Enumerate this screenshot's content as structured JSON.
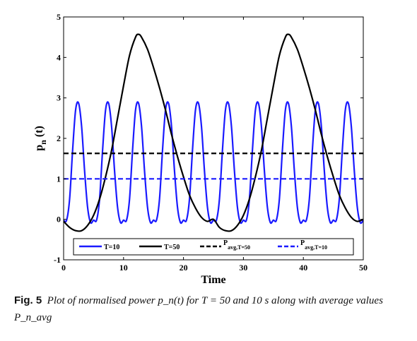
{
  "chart_data": {
    "type": "line",
    "xlabel": "Time",
    "ylabel_main": "p",
    "ylabel_sub": "n",
    "ylabel_suffix": " (t)",
    "xlim": [
      0,
      50
    ],
    "ylim": [
      -1,
      5
    ],
    "xticks": [
      "0",
      "10",
      "20",
      "30",
      "40",
      "50"
    ],
    "yticks": [
      "-1",
      "0",
      "1",
      "2",
      "3",
      "4",
      "5"
    ],
    "grid": false,
    "legend_position": "bottom",
    "series": [
      {
        "name": "T=10",
        "color": "#1a1aff",
        "style": "solid",
        "period": 5,
        "x": [
          0,
          0.5,
          1,
          1.5,
          2,
          2.5,
          3,
          3.5,
          4,
          4.5,
          5
        ],
        "y": [
          -0.02,
          -0.02,
          0.5,
          1.7,
          2.7,
          2.87,
          2.3,
          1.2,
          0.3,
          -0.08,
          -0.02
        ]
      },
      {
        "name": "T=50",
        "color": "#000000",
        "style": "solid",
        "period": 25,
        "x": [
          0,
          1,
          2,
          3,
          4,
          5,
          6,
          7,
          8,
          9,
          10,
          11,
          12,
          12.5,
          13,
          14,
          15,
          16,
          17,
          18,
          19,
          20,
          21,
          22,
          23,
          24,
          25
        ],
        "y": [
          -0.05,
          -0.2,
          -0.28,
          -0.28,
          -0.15,
          0.1,
          0.5,
          1.05,
          1.7,
          2.5,
          3.3,
          4.05,
          4.5,
          4.57,
          4.5,
          4.2,
          3.75,
          3.25,
          2.7,
          2.1,
          1.55,
          1.05,
          0.6,
          0.28,
          0.05,
          -0.05,
          0.0
        ]
      },
      {
        "name_main": "P",
        "name_sub": "avg,T=50",
        "color": "#000000",
        "style": "dashed",
        "constant": 1.63
      },
      {
        "name_main": "P",
        "name_sub": "avg,T=10",
        "color": "#1a1aff",
        "style": "dashed",
        "constant": 1.0
      }
    ]
  },
  "caption": {
    "label": "Fig. 5",
    "text": "Plot of normalised power p_n(t) for T = 50 and 10 s along with average values P_n_avg"
  }
}
